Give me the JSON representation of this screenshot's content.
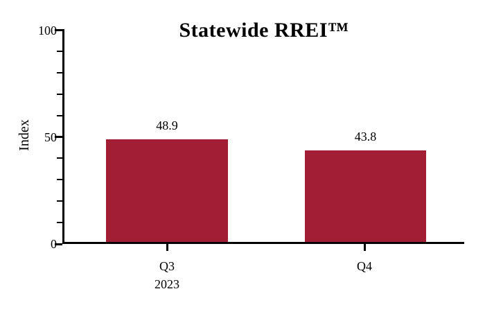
{
  "chart_data": {
    "type": "bar",
    "title": "Statewide RREI™",
    "ylabel": "Index",
    "xlabel": "",
    "categories": [
      "Q3",
      "Q4"
    ],
    "x_group_label": "2023",
    "values": [
      48.9,
      43.8
    ],
    "value_labels": [
      "48.9",
      "43.8"
    ],
    "ylim": [
      0,
      100
    ],
    "yticks_major": [
      0,
      50,
      100
    ],
    "ytick_labels": [
      "0",
      "50",
      "100"
    ],
    "ytick_minor_step": 10,
    "grid": false,
    "legend_position": "none",
    "bar_color": "#A21E34",
    "axis_color": "#000000",
    "background_color": "#FFFFFF"
  }
}
